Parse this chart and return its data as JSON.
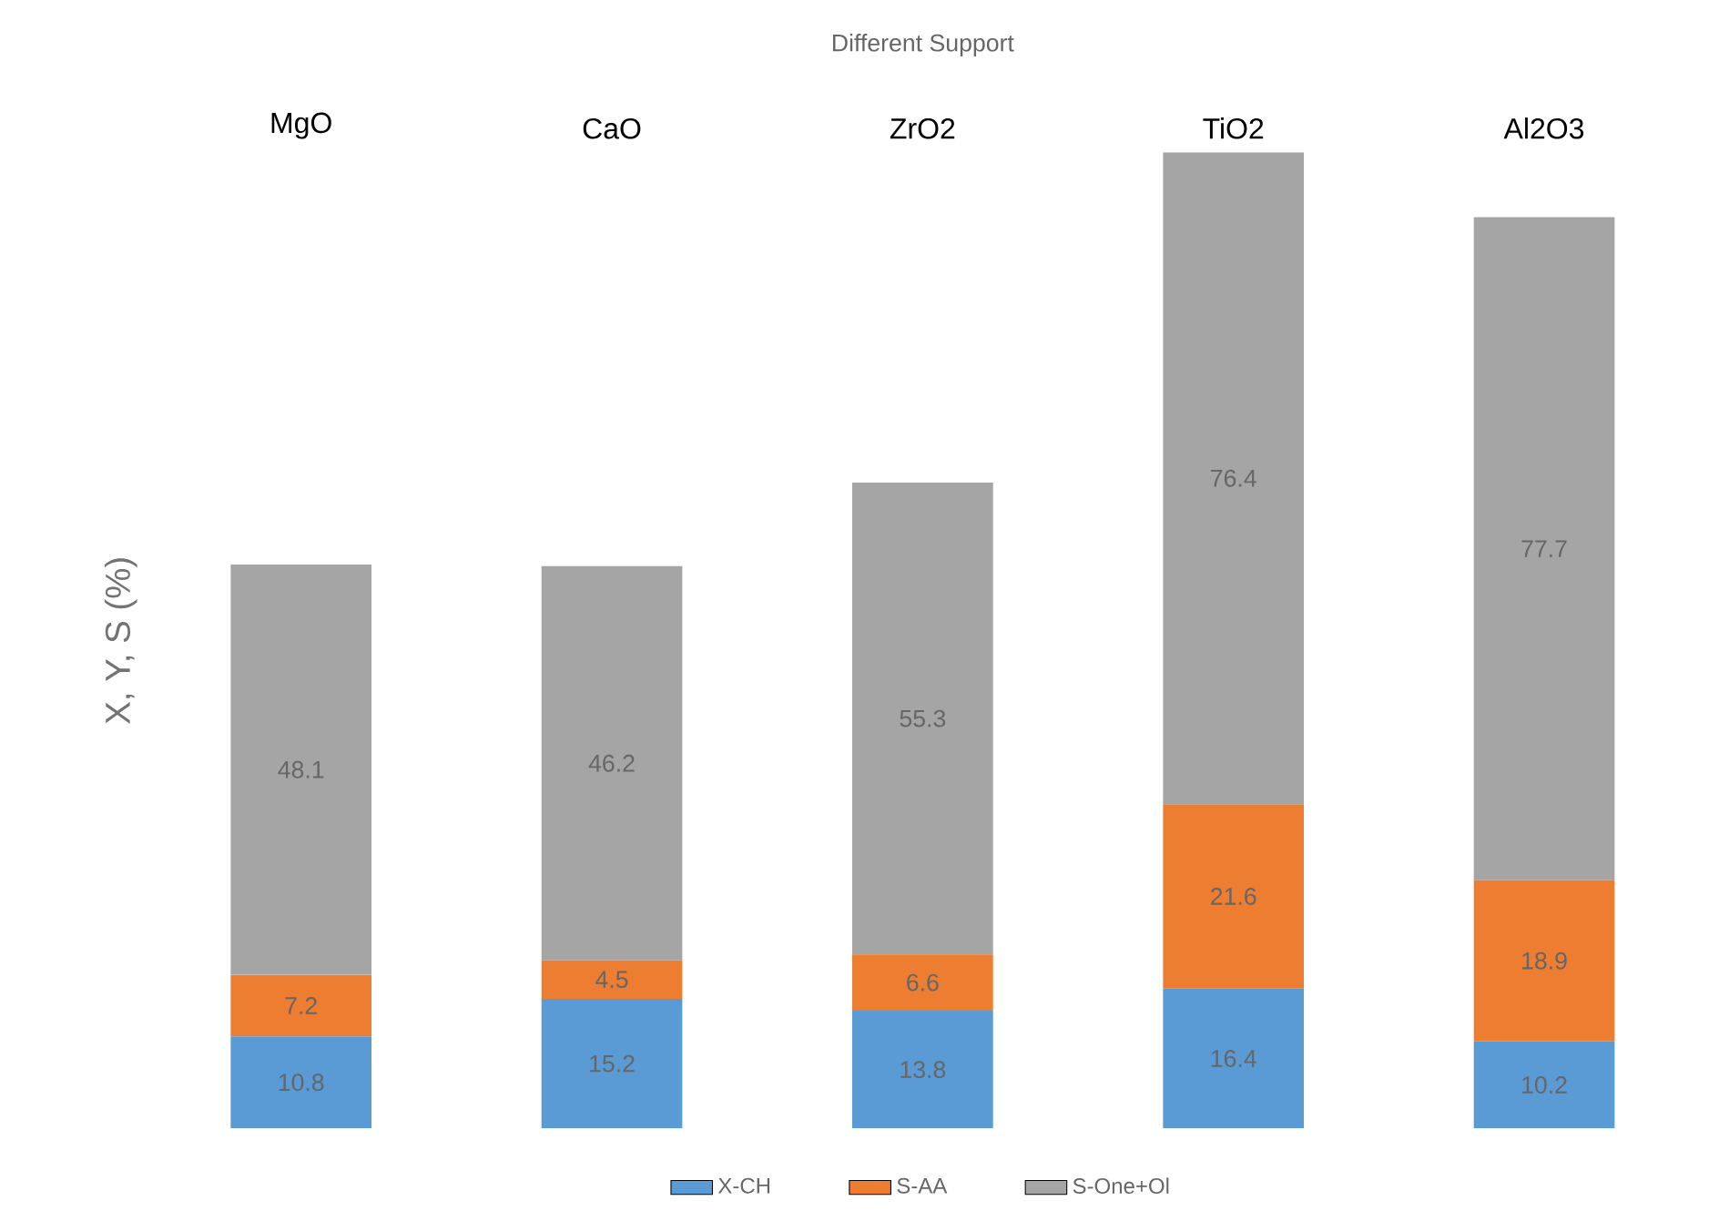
{
  "chart_data": {
    "type": "bar",
    "stacked": true,
    "title": "Different Support",
    "ylabel": "X, Y, S (%)",
    "categories": [
      "MgO",
      "CaO",
      "ZrO2",
      "TiO2",
      "Al2O3"
    ],
    "series": [
      {
        "name": "X-CH",
        "color": "#5b9bd5",
        "values": [
          10.8,
          15.2,
          13.8,
          16.4,
          10.2
        ]
      },
      {
        "name": "S-AA",
        "color": "#ed7d31",
        "values": [
          7.2,
          4.5,
          6.6,
          21.6,
          18.9
        ]
      },
      {
        "name": "S-One+Ol",
        "color": "#a5a5a5",
        "values": [
          48.1,
          46.2,
          55.3,
          76.4,
          77.7
        ]
      }
    ],
    "data_labels": true,
    "legend": "bottom"
  }
}
